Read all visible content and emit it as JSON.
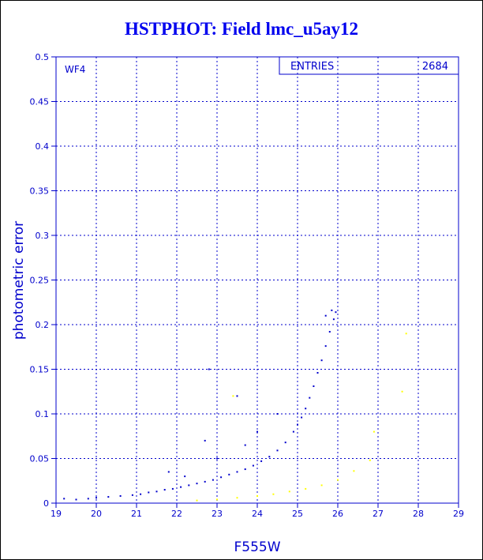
{
  "chart_data": {
    "type": "scatter",
    "title": "HSTPHOT: Field lmc_u5ay12",
    "xlabel": "F555W",
    "ylabel": "photometric error",
    "xlim": [
      19,
      29
    ],
    "ylim": [
      0,
      0.5
    ],
    "x_ticks": [
      "19",
      "20",
      "21",
      "22",
      "23",
      "24",
      "25",
      "26",
      "27",
      "28",
      "29"
    ],
    "y_ticks": [
      "0",
      "0.05",
      "0.1",
      "0.15",
      "0.2",
      "0.25",
      "0.3",
      "0.35",
      "0.4",
      "0.45",
      "0.5"
    ],
    "grid": true,
    "panel_label": "WF4",
    "stats": {
      "label": "ENTRIES",
      "value": "2684"
    },
    "colors": {
      "axis": "#0000cc",
      "grid": "#0000cc",
      "series_primary": "#0000cc",
      "series_secondary": "#ffff00",
      "title": "#0000ee"
    },
    "series": [
      {
        "color": "#0000cc",
        "points": [
          [
            19.2,
            0.005
          ],
          [
            19.5,
            0.004
          ],
          [
            19.8,
            0.005
          ],
          [
            20.0,
            0.006
          ],
          [
            20.3,
            0.007
          ],
          [
            20.6,
            0.008
          ],
          [
            20.9,
            0.009
          ],
          [
            21.1,
            0.01
          ],
          [
            21.3,
            0.012
          ],
          [
            21.5,
            0.013
          ],
          [
            21.7,
            0.015
          ],
          [
            21.9,
            0.016
          ],
          [
            22.1,
            0.018
          ],
          [
            22.3,
            0.02
          ],
          [
            22.5,
            0.022
          ],
          [
            22.7,
            0.024
          ],
          [
            22.9,
            0.026
          ],
          [
            23.1,
            0.029
          ],
          [
            23.3,
            0.032
          ],
          [
            23.5,
            0.035
          ],
          [
            23.7,
            0.038
          ],
          [
            23.9,
            0.042
          ],
          [
            24.1,
            0.047
          ],
          [
            24.3,
            0.052
          ],
          [
            24.5,
            0.059
          ],
          [
            24.7,
            0.068
          ],
          [
            24.9,
            0.08
          ],
          [
            25.0,
            0.088
          ],
          [
            25.1,
            0.096
          ],
          [
            25.2,
            0.106
          ],
          [
            25.3,
            0.118
          ],
          [
            25.4,
            0.131
          ],
          [
            25.5,
            0.146
          ],
          [
            25.6,
            0.16
          ],
          [
            25.7,
            0.176
          ],
          [
            25.8,
            0.192
          ],
          [
            25.9,
            0.206
          ],
          [
            25.95,
            0.214
          ],
          [
            25.7,
            0.21
          ],
          [
            25.85,
            0.216
          ],
          [
            22.8,
            0.15
          ],
          [
            23.5,
            0.12
          ],
          [
            22.7,
            0.07
          ],
          [
            23.0,
            0.05
          ],
          [
            24.0,
            0.08
          ],
          [
            21.8,
            0.035
          ],
          [
            22.2,
            0.03
          ],
          [
            23.7,
            0.065
          ],
          [
            24.5,
            0.1
          ]
        ]
      },
      {
        "color": "#ffff00",
        "points": [
          [
            22.5,
            0.003
          ],
          [
            23.0,
            0.004
          ],
          [
            23.5,
            0.006
          ],
          [
            24.0,
            0.008
          ],
          [
            24.4,
            0.01
          ],
          [
            24.8,
            0.013
          ],
          [
            25.2,
            0.016
          ],
          [
            25.6,
            0.02
          ],
          [
            26.0,
            0.026
          ],
          [
            26.4,
            0.036
          ],
          [
            26.8,
            0.048
          ],
          [
            23.4,
            0.12
          ],
          [
            27.7,
            0.19
          ],
          [
            27.6,
            0.125
          ],
          [
            26.9,
            0.08
          ]
        ]
      }
    ]
  }
}
